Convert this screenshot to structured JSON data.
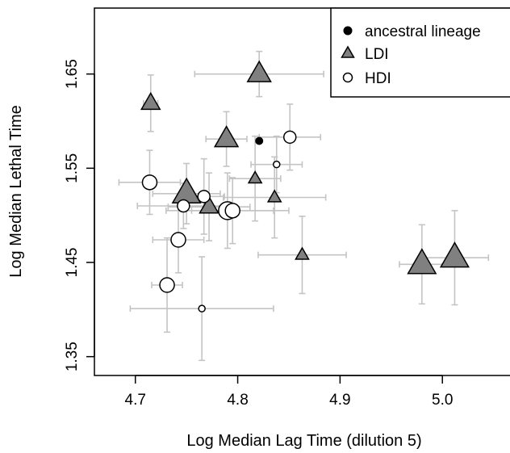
{
  "chart_data": {
    "type": "scatter",
    "xlabel": "Log Median Lag Time (dilution 5)",
    "ylabel": "Log Median Lethal Time",
    "xlim": [
      4.66,
      5.07
    ],
    "ylim": [
      1.33,
      1.72
    ],
    "x_ticks": [
      "4.7",
      "4.8",
      "4.9",
      "5.0"
    ],
    "y_ticks": [
      "1.35",
      "1.45",
      "1.55",
      "1.65"
    ],
    "grid": false,
    "legend_position": "top-right",
    "legend": [
      {
        "label": "ancestral lineage",
        "marker": "filled-circle"
      },
      {
        "label": "LDI",
        "marker": "gray-triangle"
      },
      {
        "label": "HDI",
        "marker": "open-circle"
      }
    ],
    "series": [
      {
        "name": "ancestral lineage",
        "marker": "filled-circle",
        "color": "#000000",
        "points": [
          {
            "x": 4.821,
            "y": 1.579,
            "xerr": 0.0,
            "yerr": 0.0,
            "size": 1
          }
        ]
      },
      {
        "name": "LDI",
        "marker": "triangle",
        "color": "#808080",
        "points": [
          {
            "x": 4.715,
            "y": 1.619,
            "xerr": 0.007,
            "yerr": 0.03,
            "size": 3
          },
          {
            "x": 4.821,
            "y": 1.65,
            "xerr": 0.063,
            "yerr": 0.024,
            "size": 4
          },
          {
            "x": 4.789,
            "y": 1.581,
            "xerr": 0.02,
            "yerr": 0.029,
            "size": 4
          },
          {
            "x": 4.75,
            "y": 1.523,
            "xerr": 0.033,
            "yerr": 0.032,
            "size": 5
          },
          {
            "x": 4.772,
            "y": 1.509,
            "xerr": 0.04,
            "yerr": 0.036,
            "size": 3
          },
          {
            "x": 4.817,
            "y": 1.539,
            "xerr": 0.025,
            "yerr": 0.045,
            "size": 2
          },
          {
            "x": 4.836,
            "y": 1.519,
            "xerr": 0.05,
            "yerr": 0.043,
            "size": 2
          },
          {
            "x": 4.863,
            "y": 1.458,
            "xerr": 0.043,
            "yerr": 0.041,
            "size": 2
          },
          {
            "x": 4.98,
            "y": 1.448,
            "xerr": 0.022,
            "yerr": 0.042,
            "size": 5
          },
          {
            "x": 5.012,
            "y": 1.455,
            "xerr": 0.033,
            "yerr": 0.05,
            "size": 5
          }
        ]
      },
      {
        "name": "HDI",
        "marker": "open-circle",
        "color": "#ffffff",
        "points": [
          {
            "x": 4.714,
            "y": 1.535,
            "xerr": 0.03,
            "yerr": 0.034,
            "size": 4
          },
          {
            "x": 4.747,
            "y": 1.51,
            "xerr": 0.045,
            "yerr": 0.024,
            "size": 3
          },
          {
            "x": 4.767,
            "y": 1.52,
            "xerr": 0.02,
            "yerr": 0.04,
            "size": 3
          },
          {
            "x": 4.742,
            "y": 1.474,
            "xerr": 0.025,
            "yerr": 0.035,
            "size": 4
          },
          {
            "x": 4.731,
            "y": 1.426,
            "xerr": 0.015,
            "yerr": 0.05,
            "size": 4
          },
          {
            "x": 4.765,
            "y": 1.401,
            "xerr": 0.07,
            "yerr": 0.055,
            "size": 1
          },
          {
            "x": 4.79,
            "y": 1.505,
            "xerr": 0.06,
            "yerr": 0.04,
            "size": 5
          },
          {
            "x": 4.795,
            "y": 1.505,
            "xerr": 0.04,
            "yerr": 0.035,
            "size": 4
          },
          {
            "x": 4.838,
            "y": 1.554,
            "xerr": 0.025,
            "yerr": 0.03,
            "size": 1
          },
          {
            "x": 4.851,
            "y": 1.583,
            "xerr": 0.03,
            "yerr": 0.035,
            "size": 3
          }
        ]
      }
    ]
  }
}
